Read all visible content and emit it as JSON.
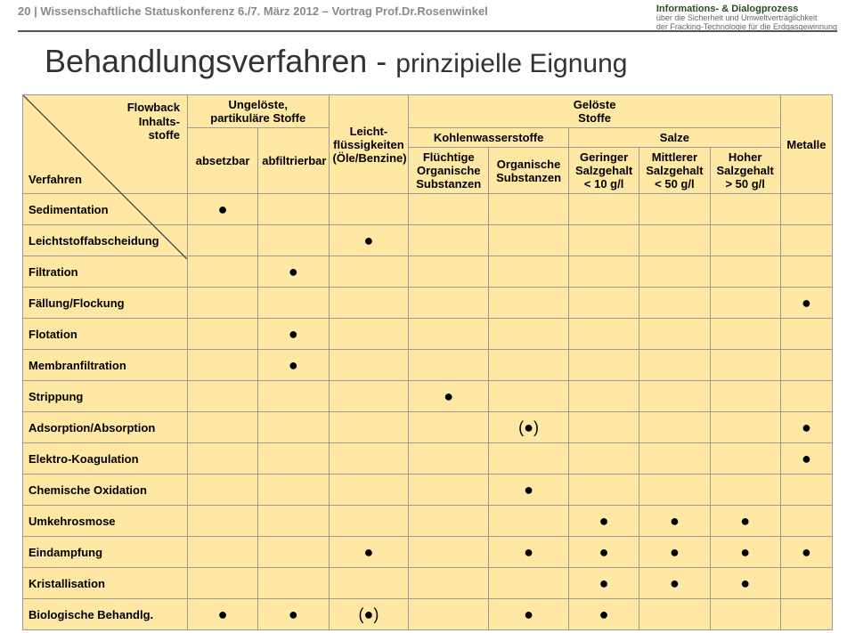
{
  "header": {
    "left": "20 | Wissenschaftliche Statuskonferenz 6./7. März 2012 – Vortrag Prof.Dr.Rosenwinkel",
    "right_line1": "Informations- & Dialogprozess",
    "right_line2": "über die Sicherheit und Umweltverträglichkeit",
    "right_line3": "der Fracking-Technologie für die Erdgasgewinnung"
  },
  "title_main": "Behandlungsverfahren - ",
  "title_sub": "prinzipielle Eignung",
  "corner": {
    "top_l1": "Flowback",
    "top_l2": "Inhalts-",
    "top_l3": "stoffe",
    "bottom": "Verfahren"
  },
  "columns": {
    "ungelost": "Ungelöste,\npartikuläre Stoffe",
    "absetzbar": "absetzbar",
    "abfiltrierbar": "abfiltrierbar",
    "leicht": "Leicht-\nflüssigkeiten\n(Öle/Benzine)",
    "gelost": "Gelöste\nStoffe",
    "kohlen": "Kohlenwasserstoffe",
    "fluchtig": "Flüchtige\nOrganische\nSubstanzen",
    "organische": "Organische\nSubstanzen",
    "salze": "Salze",
    "gering": "Geringer\nSalzgehalt\n< 10 g/l",
    "mittler": "Mittlerer\nSalzgehalt\n< 50 g/l",
    "hoher": "Hoher\nSalzgehalt\n> 50 g/l",
    "metalle": "Metalle"
  },
  "rows": [
    {
      "label": "Sedimentation",
      "cells": [
        "●",
        "",
        "",
        "",
        "",
        "",
        "",
        "",
        ""
      ]
    },
    {
      "label": "Leichtstoffabscheidung",
      "cells": [
        "",
        "",
        "●",
        "",
        "",
        "",
        "",
        "",
        ""
      ]
    },
    {
      "label": "Filtration",
      "cells": [
        "",
        "●",
        "",
        "",
        "",
        "",
        "",
        "",
        ""
      ]
    },
    {
      "label": "Fällung/Flockung",
      "cells": [
        "",
        "",
        "",
        "",
        "",
        "",
        "",
        "",
        "●"
      ]
    },
    {
      "label": "Flotation",
      "cells": [
        "",
        "●",
        "",
        "",
        "",
        "",
        "",
        "",
        ""
      ]
    },
    {
      "label": "Membranfiltration",
      "cells": [
        "",
        "●",
        "",
        "",
        "",
        "",
        "",
        "",
        ""
      ]
    },
    {
      "label": "Strippung",
      "cells": [
        "",
        "",
        "",
        "●",
        "",
        "",
        "",
        "",
        ""
      ]
    },
    {
      "label": "Adsorption/Absorption",
      "cells": [
        "",
        "",
        "",
        "",
        "(●)",
        "",
        "",
        "",
        "●"
      ]
    },
    {
      "label": "Elektro-Koagulation",
      "cells": [
        "",
        "",
        "",
        "",
        "",
        "",
        "",
        "",
        "●"
      ]
    },
    {
      "label": "Chemische Oxidation",
      "cells": [
        "",
        "",
        "",
        "",
        "●",
        "",
        "",
        "",
        ""
      ]
    },
    {
      "label": "Umkehrosmose",
      "cells": [
        "",
        "",
        "",
        "",
        "",
        "●",
        "●",
        "●",
        ""
      ]
    },
    {
      "label": "Eindampfung",
      "cells": [
        "",
        "",
        "●",
        "",
        "●",
        "●",
        "●",
        "●",
        "●"
      ]
    },
    {
      "label": "Kristallisation",
      "cells": [
        "",
        "",
        "",
        "",
        "",
        "●",
        "●",
        "●",
        ""
      ]
    },
    {
      "label": "Biologische Behandlg.",
      "cells": [
        "●",
        "●",
        "(●)",
        "",
        "●",
        "●",
        "",
        "",
        ""
      ]
    }
  ],
  "colors": {
    "cell_bg": "#ffe8a3",
    "border": "#9a9a9a",
    "header_text": "#8a8a8a"
  }
}
